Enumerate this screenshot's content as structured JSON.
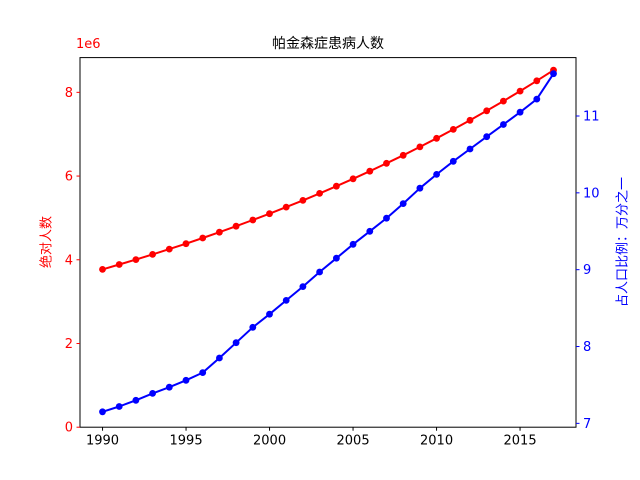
{
  "title": "帕金森症患病人数",
  "offset_label": "1e6",
  "colors": {
    "left_axis": "#ff0000",
    "right_axis": "#0000ff",
    "x_axis_text": "#000000",
    "frame": "#000000",
    "background": "#ffffff"
  },
  "chart_data": {
    "type": "line",
    "title": "帕金森症患病人数",
    "xlabel": "",
    "ylabel_left": "绝对人数",
    "ylabel_right": "占人口比例：万分之一",
    "y_left_offset": "1e6",
    "grid": false,
    "legend": "none",
    "x_ticks": [
      1990,
      1995,
      2000,
      2005,
      2010,
      2015
    ],
    "y_ticks_left": [
      0,
      2,
      4,
      6,
      8
    ],
    "y_ticks_right": [
      7,
      8,
      9,
      10,
      11
    ],
    "xlim": [
      1988.65,
      2018.35
    ],
    "ylim_left": [
      0,
      8830000
    ],
    "ylim_right": [
      6.95,
      11.76
    ],
    "x": [
      1990,
      1991,
      1992,
      1993,
      1994,
      1995,
      1996,
      1997,
      1998,
      1999,
      2000,
      2001,
      2002,
      2003,
      2004,
      2005,
      2006,
      2007,
      2008,
      2009,
      2010,
      2011,
      2012,
      2013,
      2014,
      2015,
      2016,
      2017
    ],
    "series": [
      {
        "name": "绝对人数",
        "axis": "left",
        "color": "#ff0000",
        "marker": "circle",
        "values": [
          3770000,
          3886000,
          4005000,
          4128000,
          4255000,
          4385000,
          4520000,
          4659000,
          4802000,
          4949000,
          5101000,
          5258000,
          5419000,
          5586000,
          5757000,
          5934000,
          6116000,
          6304000,
          6497000,
          6697000,
          6903000,
          7115000,
          7333000,
          7558000,
          7790000,
          8029000,
          8276000,
          8530000
        ]
      },
      {
        "name": "占人口比例：万分之一",
        "axis": "right",
        "color": "#0000ff",
        "marker": "circle",
        "values": [
          7.15,
          7.22,
          7.3,
          7.39,
          7.47,
          7.56,
          7.66,
          7.85,
          8.05,
          8.25,
          8.42,
          8.6,
          8.78,
          8.97,
          9.15,
          9.33,
          9.5,
          9.67,
          9.86,
          10.06,
          10.24,
          10.41,
          10.57,
          10.73,
          10.89,
          11.05,
          11.22,
          11.55
        ]
      }
    ]
  }
}
